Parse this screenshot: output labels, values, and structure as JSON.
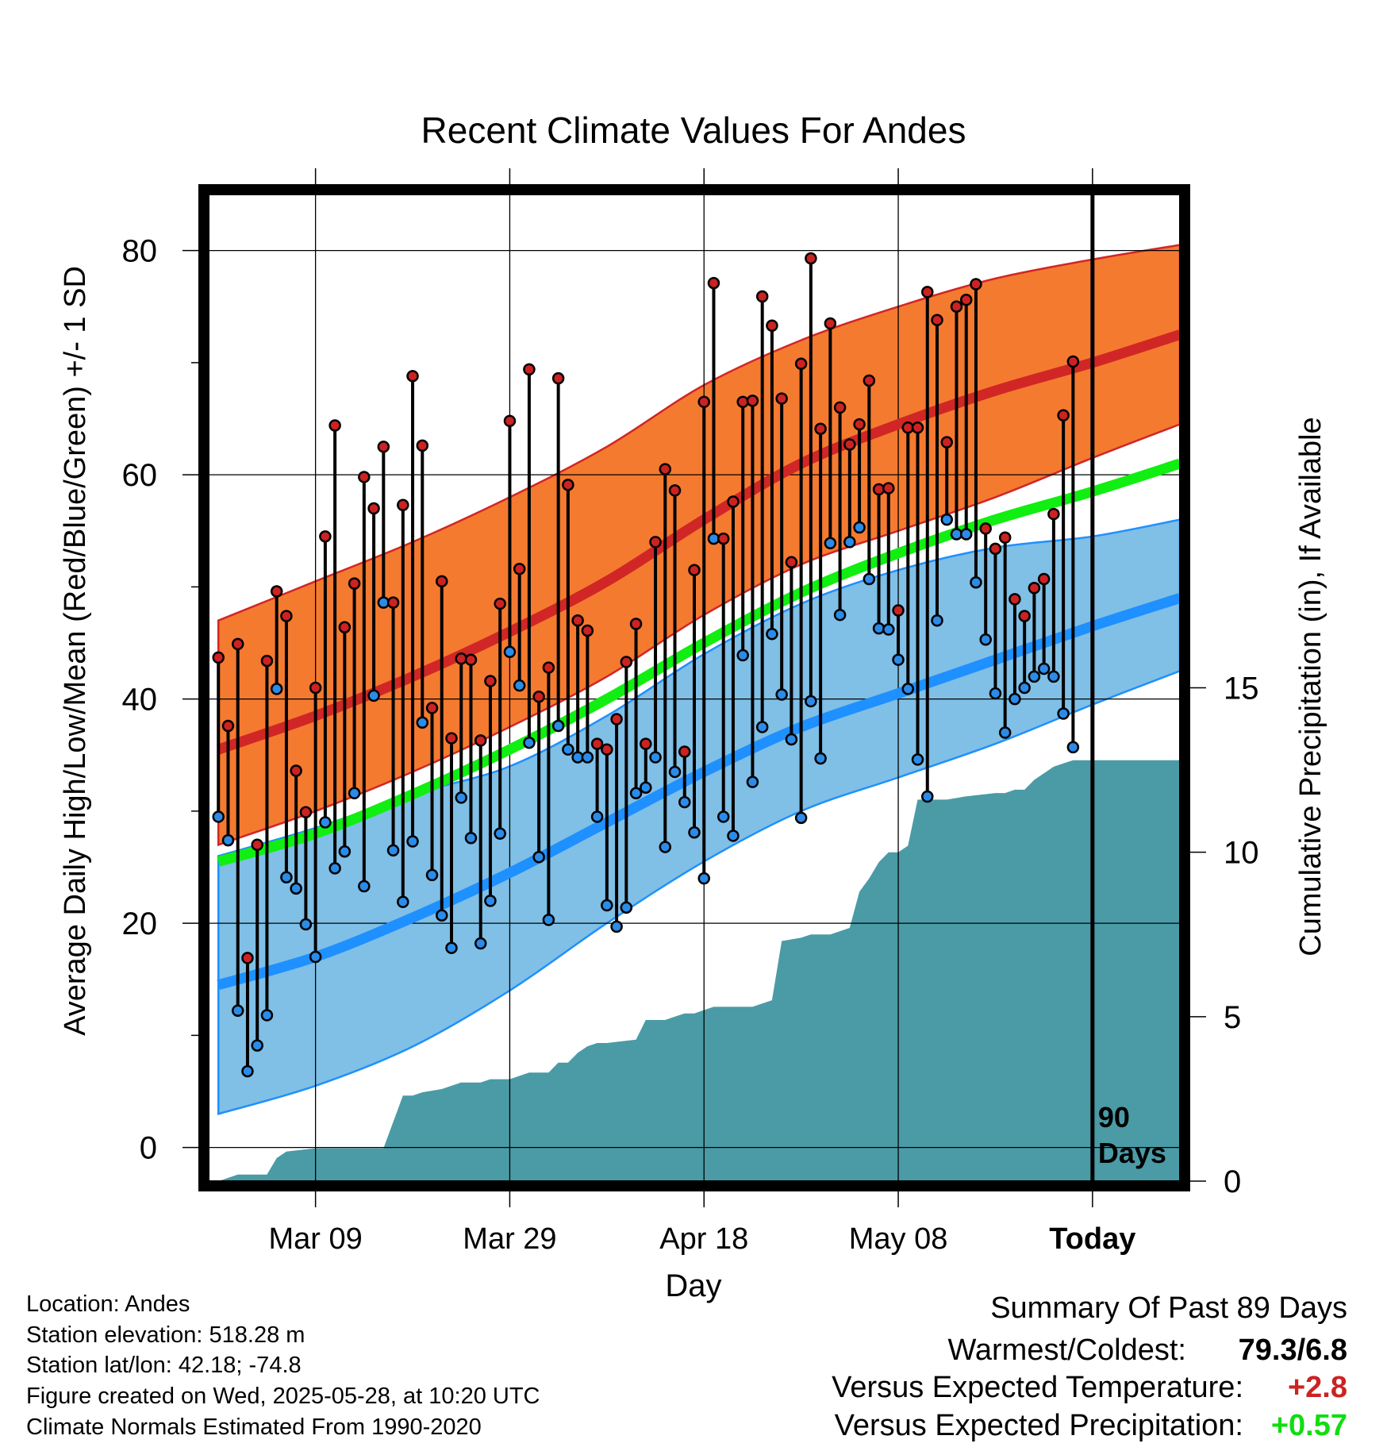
{
  "chart_data": {
    "type": "line",
    "title": "Recent Climate Values For Andes",
    "xlabel": "Day",
    "ylabel": "Average Daily High/Low/Mean (Red/Blue/Green) +/- 1 SD",
    "y2label": "Cumulative Precipitation (in), If Available",
    "ylim": [
      -3,
      85
    ],
    "y2lim": [
      0,
      30
    ],
    "yticks": [
      0,
      20,
      40,
      60,
      80
    ],
    "y2ticks": [
      0,
      5,
      10,
      15
    ],
    "xlim": [
      -1,
      99
    ],
    "xticks": [
      {
        "day": 10,
        "label": "Mar 09"
      },
      {
        "day": 30,
        "label": "Mar 29"
      },
      {
        "day": 50,
        "label": "Apr 18"
      },
      {
        "day": 70,
        "label": "May 08"
      },
      {
        "day": 90,
        "label": "Today"
      }
    ],
    "today_marker": {
      "day": 90,
      "label_line1": "90",
      "label_line2": "Days"
    },
    "grid": true,
    "normal_high": {
      "x": [
        0,
        10,
        20,
        30,
        40,
        50,
        60,
        70,
        80,
        90,
        99
      ],
      "mean": [
        35.5,
        38.5,
        42,
        46,
        50.5,
        56,
        61,
        64.5,
        67.5,
        70,
        72.5
      ],
      "upper": [
        47,
        50.5,
        54,
        58,
        62.5,
        68,
        72,
        75,
        77.5,
        79.2,
        80.5
      ],
      "lower": [
        27,
        30,
        33.5,
        37.5,
        42,
        47.5,
        52,
        55,
        58,
        61.5,
        64.5
      ]
    },
    "normal_low": {
      "x": [
        0,
        10,
        20,
        30,
        40,
        50,
        60,
        70,
        80,
        90,
        99
      ],
      "mean": [
        14.5,
        17,
        20.5,
        24.5,
        29,
        33.5,
        37.5,
        40.5,
        43.5,
        46.5,
        49
      ],
      "upper": [
        26,
        28.5,
        31.5,
        34,
        38.5,
        44,
        48.5,
        51.5,
        53.5,
        54.5,
        56
      ],
      "lower": [
        3,
        5.5,
        9,
        14,
        20,
        25.5,
        30,
        33,
        36,
        39.5,
        42.5
      ]
    },
    "normal_mean": {
      "x": [
        0,
        10,
        20,
        30,
        40,
        50,
        60,
        70,
        80,
        90,
        99
      ],
      "values": [
        25.5,
        28,
        31.5,
        35.5,
        40,
        45,
        49.5,
        53,
        56,
        58.5,
        61
      ]
    },
    "daily": {
      "day": [
        0,
        1,
        2,
        3,
        4,
        5,
        6,
        7,
        8,
        9,
        10,
        11,
        12,
        13,
        14,
        15,
        16,
        17,
        18,
        19,
        20,
        21,
        22,
        23,
        24,
        25,
        26,
        27,
        28,
        29,
        30,
        31,
        32,
        33,
        34,
        35,
        36,
        37,
        38,
        39,
        40,
        41,
        42,
        43,
        44,
        45,
        46,
        47,
        48,
        49,
        50,
        51,
        52,
        53,
        54,
        55,
        56,
        57,
        58,
        59,
        60,
        61,
        62,
        63,
        64,
        65,
        66,
        67,
        68,
        69,
        70,
        71,
        72,
        73,
        74,
        75,
        76,
        77,
        78,
        79,
        80,
        81,
        82,
        83,
        84,
        85,
        86,
        87,
        88,
        89
      ],
      "high": [
        43.7,
        37.6,
        44.9,
        16.9,
        27,
        43.4,
        49.6,
        47.4,
        33.6,
        29.9,
        41,
        54.5,
        64.4,
        46.4,
        50.3,
        59.8,
        57,
        62.5,
        48.6,
        57.3,
        68.8,
        62.6,
        39.2,
        50.5,
        36.5,
        43.6,
        43.5,
        36.3,
        41.6,
        48.5,
        64.8,
        51.6,
        69.4,
        40.2,
        42.8,
        68.6,
        59.1,
        47,
        46.1,
        36,
        35.5,
        38.2,
        43.3,
        46.7,
        36,
        54,
        60.5,
        58.6,
        35.3,
        51.5,
        66.5,
        77.1,
        54.3,
        57.6,
        66.5,
        66.6,
        75.9,
        73.3,
        66.8,
        52.2,
        69.9,
        79.3,
        64.1,
        73.5,
        66,
        62.7,
        64.5,
        68.4,
        58.7,
        58.8,
        47.9,
        64.2,
        64.2,
        76.3,
        73.8,
        62.9,
        75,
        75.6,
        77,
        55.2,
        53.4,
        54.4,
        48.9,
        47.4,
        49.9,
        50.7,
        56.5,
        65.3,
        70.1,
        null
      ],
      "low": [
        29.5,
        27.4,
        12.2,
        6.8,
        9.1,
        11.8,
        40.9,
        24.1,
        23.1,
        19.9,
        17,
        29,
        24.9,
        26.4,
        31.6,
        23.3,
        40.3,
        48.6,
        26.5,
        21.9,
        27.3,
        37.9,
        24.3,
        20.7,
        17.8,
        31.2,
        27.6,
        18.2,
        22,
        28,
        44.2,
        41.2,
        36.1,
        25.9,
        20.3,
        37.6,
        35.5,
        34.8,
        34.8,
        29.5,
        21.6,
        19.7,
        21.4,
        31.6,
        32.1,
        34.8,
        26.8,
        33.5,
        30.8,
        28.1,
        24,
        54.3,
        29.5,
        27.8,
        43.9,
        32.6,
        37.5,
        45.8,
        40.4,
        36.4,
        29.4,
        39.8,
        34.7,
        53.9,
        47.5,
        54,
        55.3,
        50.7,
        46.3,
        46.2,
        43.5,
        40.9,
        34.6,
        31.3,
        47,
        56,
        54.7,
        54.7,
        50.4,
        45.3,
        40.5,
        37,
        40,
        41,
        42,
        42.7,
        42,
        38.7,
        35.7,
        null
      ]
    },
    "precipitation": {
      "day": [
        -1,
        0,
        1,
        2,
        5,
        6,
        7,
        10,
        12,
        14,
        16,
        17,
        19,
        20,
        21,
        23,
        25,
        27,
        28,
        30,
        31,
        32,
        34,
        35,
        36,
        37,
        38,
        39,
        40,
        43,
        44,
        46,
        47,
        48,
        49,
        50,
        51,
        52,
        53,
        55,
        56,
        57,
        58,
        60,
        61,
        62,
        63,
        64,
        65,
        66,
        67,
        68,
        69,
        70,
        71,
        72,
        73,
        75,
        77,
        80,
        81,
        82,
        83,
        84,
        85,
        86,
        87,
        88,
        89,
        90,
        99
      ],
      "values": [
        0,
        0,
        0.1,
        0.2,
        0.2,
        0.7,
        0.9,
        1,
        1,
        1,
        1,
        1,
        2.6,
        2.6,
        2.7,
        2.8,
        3,
        3,
        3.1,
        3.1,
        3.2,
        3.3,
        3.3,
        3.6,
        3.6,
        3.9,
        4.1,
        4.2,
        4.2,
        4.3,
        4.9,
        4.9,
        5,
        5.1,
        5.1,
        5.2,
        5.3,
        5.3,
        5.3,
        5.3,
        5.4,
        5.5,
        7.3,
        7.4,
        7.5,
        7.5,
        7.5,
        7.6,
        7.7,
        8.8,
        9.2,
        9.7,
        10,
        10,
        10.2,
        11.6,
        11.6,
        11.6,
        11.7,
        11.8,
        11.8,
        11.9,
        11.9,
        12.2,
        12.4,
        12.6,
        12.7,
        12.8,
        12.8,
        12.8,
        12.8
      ]
    }
  },
  "footer": {
    "location": "Location: Andes",
    "elevation": "Station elevation: 518.28 m",
    "latlon": "Station lat/lon: 42.18; -74.8",
    "created": "Figure created on Wed, 2025-05-28, at 10:20 UTC",
    "normals": "Climate Normals Estimated From 1990-2020"
  },
  "summary": {
    "heading": "Summary Of Past 89 Days",
    "warmest_label": "Warmest/Coldest:",
    "warmest_value": "79.3/6.8",
    "temp_label": "Versus Expected Temperature:",
    "temp_value": "+2.8",
    "temp_color": "#cc2222",
    "precip_label": "Versus Expected Precipitation:",
    "precip_value": "+0.57",
    "precip_color": "#11dd11"
  },
  "colors": {
    "high_band": "#f47a30",
    "high_line": "#d12626",
    "low_band": "#80bfe6",
    "low_line": "#1e90ff",
    "mean_line": "#11ee11",
    "precip_fill": "#4a9ba6",
    "high_dot": "#cc2222",
    "low_dot": "#2b8be8"
  }
}
